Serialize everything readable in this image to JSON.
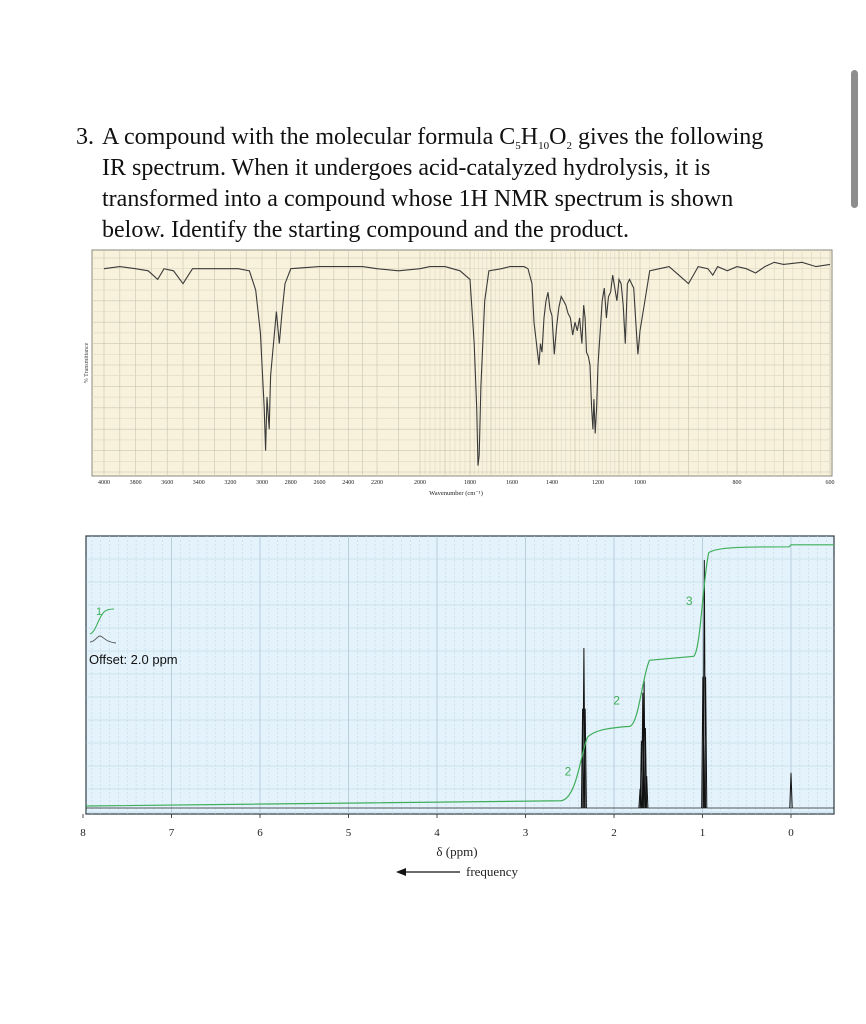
{
  "question": {
    "number": "3.",
    "line1_a": "A compound with the molecular formula C",
    "sub_c": "5",
    "mid_h": "H",
    "sub_h": "10",
    "mid_o": "O",
    "sub_o": "2",
    "line1_b": " gives the following",
    "line2": "IR spectrum.  When it undergoes acid-catalyzed hydrolysis, it is",
    "line3": "transformed into a compound whose 1H NMR spectrum is shown",
    "line4": "below.  Identify the starting compound and the product."
  },
  "chart_data": [
    {
      "type": "line",
      "name": "IR spectrum",
      "xlabel": "Wavenumber (cm⁻¹)",
      "ylabel": "% Transmittance",
      "x_ticks": [
        "4000",
        "3800",
        "3600",
        "3400",
        "3200",
        "3000",
        "2800",
        "2600",
        "2400",
        "2200",
        "2000",
        "1800",
        "1600",
        "1400",
        "1200",
        "1000",
        "800",
        "600"
      ],
      "xlim": [
        4000,
        600
      ],
      "x_scale": "split: 1 cm-1 per unit above 2000, 2x expanded below 2000",
      "ylim": [
        0,
        100
      ],
      "grid": true,
      "line_color": "#3a3a3a",
      "background": "#f8f2dc",
      "trace": [
        [
          4000,
          95
        ],
        [
          3900,
          96
        ],
        [
          3800,
          95
        ],
        [
          3720,
          94
        ],
        [
          3660,
          90
        ],
        [
          3620,
          95
        ],
        [
          3560,
          94
        ],
        [
          3500,
          88
        ],
        [
          3440,
          95
        ],
        [
          3400,
          95
        ],
        [
          3300,
          95
        ],
        [
          3150,
          95
        ],
        [
          3080,
          94
        ],
        [
          3040,
          85
        ],
        [
          3010,
          65
        ],
        [
          2985,
          30
        ],
        [
          2975,
          10
        ],
        [
          2965,
          35
        ],
        [
          2950,
          20
        ],
        [
          2940,
          45
        ],
        [
          2920,
          60
        ],
        [
          2900,
          75
        ],
        [
          2880,
          60
        ],
        [
          2860,
          75
        ],
        [
          2840,
          88
        ],
        [
          2800,
          95
        ],
        [
          2600,
          96
        ],
        [
          2400,
          96
        ],
        [
          2300,
          96
        ],
        [
          2200,
          95
        ],
        [
          2100,
          94
        ],
        [
          2000,
          95
        ],
        [
          1960,
          96
        ],
        [
          1900,
          96
        ],
        [
          1840,
          94
        ],
        [
          1800,
          90
        ],
        [
          1780,
          60
        ],
        [
          1768,
          30
        ],
        [
          1762,
          3
        ],
        [
          1756,
          8
        ],
        [
          1748,
          40
        ],
        [
          1730,
          80
        ],
        [
          1710,
          94
        ],
        [
          1650,
          95
        ],
        [
          1610,
          96
        ],
        [
          1540,
          96
        ],
        [
          1520,
          95
        ],
        [
          1500,
          88
        ],
        [
          1490,
          70
        ],
        [
          1475,
          58
        ],
        [
          1465,
          50
        ],
        [
          1458,
          60
        ],
        [
          1450,
          56
        ],
        [
          1440,
          72
        ],
        [
          1430,
          80
        ],
        [
          1420,
          84
        ],
        [
          1410,
          76
        ],
        [
          1400,
          73
        ],
        [
          1390,
          55
        ],
        [
          1380,
          68
        ],
        [
          1370,
          77
        ],
        [
          1360,
          82
        ],
        [
          1350,
          80
        ],
        [
          1340,
          78
        ],
        [
          1330,
          74
        ],
        [
          1320,
          72
        ],
        [
          1310,
          64
        ],
        [
          1300,
          70
        ],
        [
          1290,
          66
        ],
        [
          1280,
          72
        ],
        [
          1270,
          60
        ],
        [
          1262,
          78
        ],
        [
          1256,
          72
        ],
        [
          1250,
          56
        ],
        [
          1242,
          54
        ],
        [
          1235,
          50
        ],
        [
          1228,
          30
        ],
        [
          1222,
          20
        ],
        [
          1218,
          34
        ],
        [
          1212,
          18
        ],
        [
          1206,
          30
        ],
        [
          1200,
          50
        ],
        [
          1180,
          80
        ],
        [
          1170,
          86
        ],
        [
          1160,
          72
        ],
        [
          1150,
          82
        ],
        [
          1140,
          84
        ],
        [
          1130,
          92
        ],
        [
          1120,
          86
        ],
        [
          1110,
          80
        ],
        [
          1100,
          90
        ],
        [
          1090,
          88
        ],
        [
          1080,
          78
        ],
        [
          1070,
          60
        ],
        [
          1065,
          75
        ],
        [
          1060,
          88
        ],
        [
          1050,
          90
        ],
        [
          1040,
          88
        ],
        [
          1030,
          86
        ],
        [
          1020,
          70
        ],
        [
          1010,
          55
        ],
        [
          1000,
          66
        ],
        [
          990,
          80
        ],
        [
          980,
          94
        ],
        [
          960,
          95
        ],
        [
          940,
          96
        ],
        [
          920,
          92
        ],
        [
          900,
          88
        ],
        [
          890,
          92
        ],
        [
          880,
          96
        ],
        [
          860,
          95
        ],
        [
          850,
          92
        ],
        [
          840,
          96
        ],
        [
          820,
          94
        ],
        [
          800,
          96
        ],
        [
          780,
          95
        ],
        [
          760,
          93
        ],
        [
          740,
          96
        ],
        [
          720,
          98
        ],
        [
          700,
          97
        ],
        [
          660,
          98
        ],
        [
          630,
          96
        ],
        [
          600,
          97
        ]
      ]
    },
    {
      "type": "line",
      "name": "1H NMR spectrum",
      "xlabel": "δ (ppm)",
      "arrow_label": "frequency",
      "x_ticks": [
        "8",
        "7",
        "6",
        "5",
        "4",
        "3",
        "2",
        "1",
        "0"
      ],
      "xlim": [
        8,
        -0.5
      ],
      "grid": true,
      "background": "#e3f2fb",
      "offset_label": "Offset: 2.0 ppm",
      "offset_integral": "1",
      "integrals": [
        {
          "label": "2",
          "value": 2
        },
        {
          "label": "2",
          "value": 2
        },
        {
          "label": "3",
          "value": 3
        }
      ],
      "peaks": [
        {
          "shift": 2.34,
          "multiplicity": "triplet",
          "lines": [
            [
              2.355,
              0.62
            ],
            [
              2.34,
              1.0
            ],
            [
              2.325,
              0.62
            ]
          ]
        },
        {
          "shift": 1.67,
          "multiplicity": "sextet",
          "lines": [
            [
              1.705,
              0.12
            ],
            [
              1.69,
              0.42
            ],
            [
              1.675,
              0.72
            ],
            [
              1.66,
              0.8
            ],
            [
              1.645,
              0.5
            ],
            [
              1.63,
              0.2
            ]
          ]
        },
        {
          "shift": 0.98,
          "multiplicity": "triplet",
          "lines": [
            [
              0.995,
              0.82
            ],
            [
              0.98,
              1.55
            ],
            [
              0.965,
              0.82
            ]
          ]
        },
        {
          "shift": 0.0,
          "multiplicity": "singlet",
          "lines": [
            [
              0.0,
              0.22
            ]
          ]
        }
      ],
      "integral_color": "#3fae5a",
      "peak_color": "#111111"
    }
  ]
}
